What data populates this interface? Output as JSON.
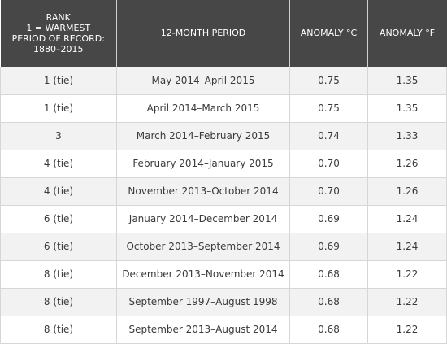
{
  "table": {
    "headers": {
      "rank": [
        "RANK",
        "1 = WARMEST",
        "PERIOD OF RECORD:",
        "1880–2015"
      ],
      "period": "12-MONTH PERIOD",
      "anomaly_c": "ANOMALY °C",
      "anomaly_f": "ANOMALY °F"
    },
    "rows": [
      {
        "rank": "1 (tie)",
        "period": "May 2014–April 2015",
        "anomaly_c": "0.75",
        "anomaly_f": "1.35"
      },
      {
        "rank": "1 (tie)",
        "period": "April 2014–March 2015",
        "anomaly_c": "0.75",
        "anomaly_f": "1.35"
      },
      {
        "rank": "3",
        "period": "March 2014–February 2015",
        "anomaly_c": "0.74",
        "anomaly_f": "1.33"
      },
      {
        "rank": "4 (tie)",
        "period": "February 2014–January 2015",
        "anomaly_c": "0.70",
        "anomaly_f": "1.26"
      },
      {
        "rank": "4 (tie)",
        "period": "November 2013–October 2014",
        "anomaly_c": "0.70",
        "anomaly_f": "1.26"
      },
      {
        "rank": "6 (tie)",
        "period": "January 2014–December 2014",
        "anomaly_c": "0.69",
        "anomaly_f": "1.24"
      },
      {
        "rank": "6 (tie)",
        "period": "October 2013–September 2014",
        "anomaly_c": "0.69",
        "anomaly_f": "1.24"
      },
      {
        "rank": "8 (tie)",
        "period": "December 2013–November 2014",
        "anomaly_c": "0.68",
        "anomaly_f": "1.22"
      },
      {
        "rank": "8 (tie)",
        "period": "September 1997–August 1998",
        "anomaly_c": "0.68",
        "anomaly_f": "1.22"
      },
      {
        "rank": "8 (tie)",
        "period": "September 2013–August 2014",
        "anomaly_c": "0.68",
        "anomaly_f": "1.22"
      }
    ]
  },
  "colors": {
    "header_bg": "#474747",
    "header_text": "#ffffff",
    "row_alt_bg": "#f2f2f2",
    "row_bg": "#ffffff",
    "border": "#d6d6d6",
    "cell_text": "#3a3a3a"
  }
}
